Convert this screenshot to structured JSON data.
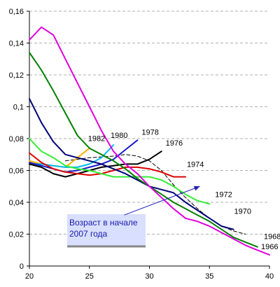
{
  "chart_data": {
    "type": "line",
    "title": "",
    "xlabel": "",
    "ylabel": "",
    "xlim": [
      20,
      40
    ],
    "ylim": [
      0,
      0.16
    ],
    "x_ticks": [
      "20",
      "25",
      "30",
      "35",
      "40"
    ],
    "y_ticks": [
      "0",
      "0,02",
      "0,04",
      "0,06",
      "0,08",
      "0,1",
      "0,12",
      "0,14",
      "0,16"
    ],
    "x_tick_values": [
      20,
      25,
      30,
      35,
      40
    ],
    "y_tick_values": [
      0,
      0.02,
      0.04,
      0.06,
      0.08,
      0.1,
      0.12,
      0.14,
      0.16
    ],
    "grid": "horizontal dashed",
    "series": [
      {
        "name": "1966",
        "color": "#e000e0",
        "x": [
          20,
          21,
          22,
          23,
          24,
          25,
          26,
          27,
          28,
          29,
          30,
          31,
          32,
          33,
          34,
          35,
          36,
          37,
          38,
          39,
          40
        ],
        "y": [
          0.142,
          0.15,
          0.145,
          0.13,
          0.115,
          0.1,
          0.085,
          0.072,
          0.064,
          0.058,
          0.05,
          0.043,
          0.036,
          0.03,
          0.028,
          0.025,
          0.021,
          0.017,
          0.013,
          0.01,
          0.007
        ]
      },
      {
        "name": "1968",
        "color": "#008000",
        "x": [
          20,
          21,
          22,
          23,
          24,
          25,
          26,
          27,
          28,
          29,
          30,
          31,
          32,
          33,
          34,
          35,
          36,
          37,
          38,
          39
        ],
        "y": [
          0.134,
          0.123,
          0.11,
          0.096,
          0.082,
          0.074,
          0.07,
          0.066,
          0.061,
          0.055,
          0.05,
          0.045,
          0.04,
          0.036,
          0.032,
          0.028,
          0.023,
          0.018,
          0.015,
          0.012
        ]
      },
      {
        "name": "1970",
        "color": "#00007a",
        "x": [
          20,
          21,
          22,
          23,
          24,
          25,
          26,
          27,
          28,
          29,
          30,
          31,
          32,
          33,
          34,
          35,
          36,
          37
        ],
        "y": [
          0.105,
          0.09,
          0.078,
          0.07,
          0.068,
          0.066,
          0.064,
          0.061,
          0.058,
          0.054,
          0.05,
          0.048,
          0.046,
          0.04,
          0.035,
          0.03,
          0.025,
          0.023
        ]
      },
      {
        "name": "1972",
        "color": "#33ee33",
        "x": [
          20,
          21,
          22,
          23,
          24,
          25,
          26,
          27,
          28,
          29,
          30,
          31,
          32,
          33,
          34,
          35
        ],
        "y": [
          0.08,
          0.072,
          0.068,
          0.063,
          0.061,
          0.06,
          0.058,
          0.056,
          0.056,
          0.056,
          0.056,
          0.054,
          0.05,
          0.045,
          0.041,
          0.039
        ]
      },
      {
        "name": "1974",
        "color": "#dd0000",
        "x": [
          20,
          21,
          22,
          23,
          24,
          25,
          26,
          27,
          28,
          29,
          30,
          31,
          32,
          33
        ],
        "y": [
          0.071,
          0.065,
          0.061,
          0.059,
          0.058,
          0.057,
          0.058,
          0.06,
          0.062,
          0.062,
          0.061,
          0.059,
          0.056,
          0.056
        ]
      },
      {
        "name": "1976",
        "color": "#000000",
        "x": [
          20,
          21,
          22,
          23,
          24,
          25,
          26,
          27,
          28,
          29,
          30,
          31
        ],
        "y": [
          0.064,
          0.062,
          0.058,
          0.056,
          0.058,
          0.06,
          0.062,
          0.063,
          0.064,
          0.064,
          0.067,
          0.072
        ]
      },
      {
        "name": "1978",
        "color": "#1a1acc",
        "x": [
          20,
          21,
          22,
          23,
          24,
          25,
          26,
          27,
          28,
          29
        ],
        "y": [
          0.065,
          0.063,
          0.061,
          0.059,
          0.06,
          0.062,
          0.064,
          0.067,
          0.073,
          0.079
        ]
      },
      {
        "name": "1980",
        "color": "#00bbee",
        "x": [
          20,
          21,
          22,
          23,
          24,
          25,
          26,
          27
        ],
        "y": [
          0.064,
          0.064,
          0.063,
          0.062,
          0.062,
          0.064,
          0.068,
          0.076
        ]
      },
      {
        "name": "1982",
        "color": "#ffb000",
        "x": [
          20,
          21,
          22,
          23,
          24,
          25
        ],
        "y": [
          0.066,
          0.064,
          0.063,
          0.062,
          0.068,
          0.074
        ]
      },
      {
        "name": "",
        "color": "#000000",
        "dashed": true,
        "x": [
          23,
          25,
          27,
          28,
          29,
          30,
          31,
          32,
          33,
          34,
          35,
          36,
          37,
          38
        ],
        "y": [
          0.066,
          0.068,
          0.069,
          0.07,
          0.069,
          0.066,
          0.06,
          0.051,
          0.043,
          0.036,
          0.03,
          0.025,
          0.022,
          0.02
        ]
      }
    ],
    "annotations": {
      "box_text_line1": "Возраст в начале",
      "box_text_line2": "2007 года",
      "box_fill": "#d8dfff",
      "arrow_from": [
        27.9,
        0.032
      ],
      "arrow_to": [
        34.2,
        0.05
      ]
    }
  }
}
